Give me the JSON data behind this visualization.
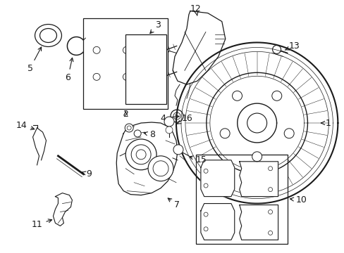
{
  "bg_color": "#ffffff",
  "line_color": "#1a1a1a",
  "fig_width": 4.89,
  "fig_height": 3.6,
  "dpi": 100
}
